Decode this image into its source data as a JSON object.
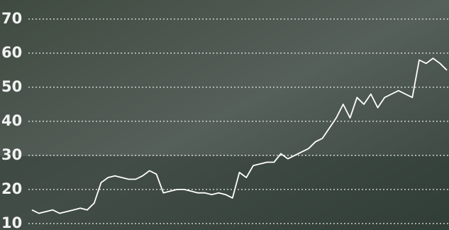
{
  "chart_data": {
    "type": "line",
    "color": "#ffffff",
    "grid": true,
    "values": [
      14,
      13,
      13.5,
      14,
      13,
      13.5,
      14,
      14.5,
      14,
      16,
      22,
      23.5,
      24,
      23.5,
      23,
      23,
      24,
      25.5,
      24.5,
      19,
      19.5,
      20,
      20,
      19.5,
      19,
      19,
      18.5,
      19,
      18.5,
      17.5,
      25,
      23.5,
      27,
      27.5,
      28,
      28,
      30.5,
      29,
      30,
      31,
      32,
      34,
      35,
      38,
      41,
      45,
      41,
      47,
      45,
      48,
      44,
      47,
      48,
      49,
      48,
      47,
      58,
      57,
      58.5,
      57,
      55
    ],
    "ylim": [
      8.1,
      75.6
    ],
    "yticks": [
      10,
      20,
      30,
      40,
      50,
      60,
      70
    ]
  }
}
